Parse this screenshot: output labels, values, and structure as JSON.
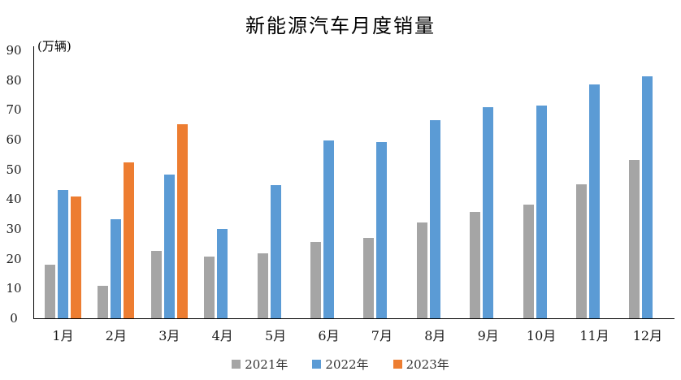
{
  "chart_data": {
    "type": "bar",
    "title": "新能源汽车月度销量",
    "unit_label": "(万辆)",
    "categories": [
      "1月",
      "2月",
      "3月",
      "4月",
      "5月",
      "6月",
      "7月",
      "8月",
      "9月",
      "10月",
      "11月",
      "12月"
    ],
    "series": [
      {
        "name": "2021年",
        "color": "#a5a5a5",
        "values": [
          17.9,
          11.0,
          22.6,
          20.6,
          21.7,
          25.6,
          27.1,
          32.1,
          35.7,
          38.3,
          45.0,
          53.1
        ]
      },
      {
        "name": "2022年",
        "color": "#5b9bd5",
        "values": [
          43.1,
          33.4,
          48.4,
          29.9,
          44.7,
          59.6,
          59.3,
          66.6,
          70.8,
          71.4,
          78.6,
          81.4
        ]
      },
      {
        "name": "2023年",
        "color": "#ed7d31",
        "values": [
          40.8,
          52.5,
          65.3,
          null,
          null,
          null,
          null,
          null,
          null,
          null,
          null,
          null
        ]
      }
    ],
    "ylim": [
      0,
      90
    ],
    "ytick_step": 10,
    "grid": false,
    "legend_position": "bottom",
    "axis_color": "#000000"
  }
}
